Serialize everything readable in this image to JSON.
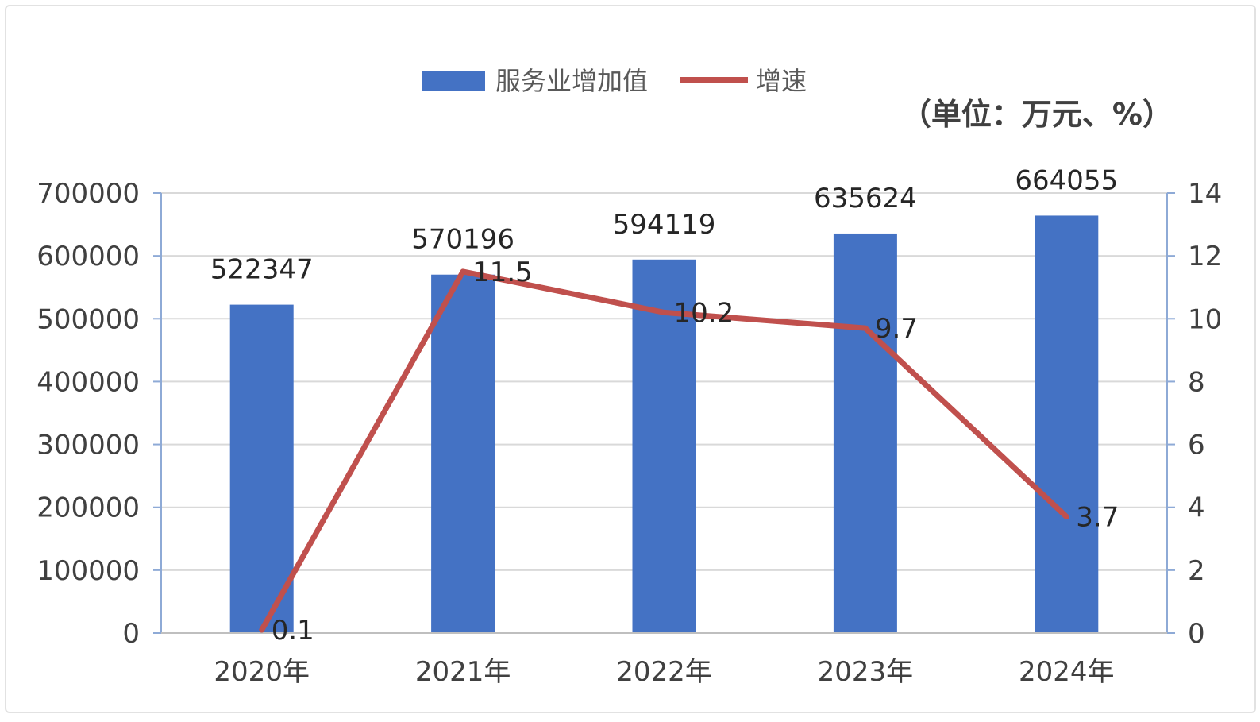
{
  "chart_data": {
    "type": "bar",
    "categories": [
      "2020年",
      "2021年",
      "2022年",
      "2023年",
      "2024年"
    ],
    "series": [
      {
        "name": "服务业增加值",
        "type": "bar",
        "axis": "left",
        "color": "#4472c4",
        "values": [
          522347,
          570196,
          594119,
          635624,
          664055
        ],
        "labels": [
          "522347",
          "570196",
          "594119",
          "635624",
          "664055"
        ]
      },
      {
        "name": "增速",
        "type": "line",
        "axis": "right",
        "color": "#c0504d",
        "values": [
          0.1,
          11.5,
          10.2,
          9.7,
          3.7
        ],
        "labels": [
          "0.1",
          "11.5",
          "10.2",
          "9.7",
          "3.7"
        ]
      }
    ],
    "unit": "（单位：万元、%）",
    "y_left": {
      "min": 0,
      "max": 700000,
      "step": 100000,
      "ticks": [
        "0",
        "100000",
        "200000",
        "300000",
        "400000",
        "500000",
        "600000",
        "700000"
      ]
    },
    "y_right": {
      "min": 0,
      "max": 14,
      "step": 2,
      "ticks": [
        "0",
        "2",
        "4",
        "6",
        "8",
        "10",
        "12",
        "14"
      ]
    },
    "grid": true,
    "legend_position": "top-center"
  }
}
